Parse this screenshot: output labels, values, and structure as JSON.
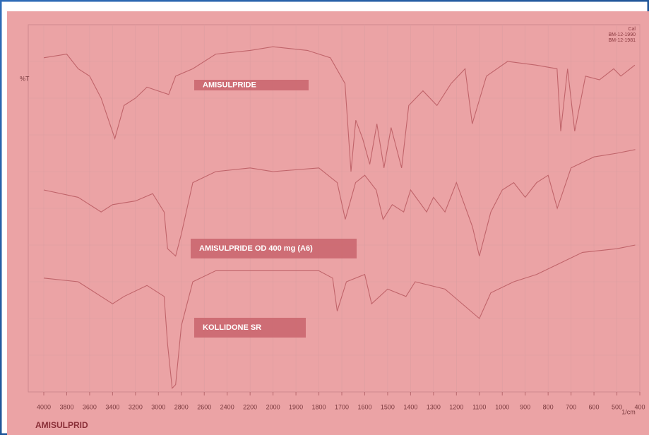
{
  "chart_data": {
    "type": "line",
    "y_label": "%T",
    "x_label": "1/cm",
    "caption": "AMISULPRID",
    "annotations": [
      "Cal",
      "BM-12-1990",
      "BM-12-1981"
    ],
    "xlim": [
      4000,
      400
    ],
    "xticks": [
      4000,
      3800,
      3600,
      3400,
      3200,
      3000,
      2800,
      2600,
      2400,
      2200,
      2000,
      1900,
      1800,
      1700,
      1600,
      1500,
      1400,
      1300,
      1200,
      1100,
      1000,
      900,
      800,
      700,
      600,
      500,
      400
    ],
    "ylim": [
      0,
      100
    ],
    "grid": true,
    "series": [
      {
        "name": "AMISULPRIDE",
        "color": "#c0646a",
        "x": [
          4000,
          3800,
          3700,
          3600,
          3500,
          3380,
          3300,
          3200,
          3100,
          2910,
          2850,
          2700,
          2500,
          2200,
          2000,
          1850,
          1750,
          1686,
          1660,
          1639,
          1609,
          1578,
          1547,
          1516,
          1485,
          1439,
          1408,
          1346,
          1285,
          1223,
          1162,
          1131,
          1069,
          977,
          853,
          761,
          745,
          715,
          684,
          637,
          576,
          514,
          483,
          422
        ],
        "values": [
          91,
          92,
          88,
          86,
          80,
          69,
          78,
          80,
          83,
          81,
          86,
          88,
          92,
          93,
          94,
          93,
          91,
          84,
          60,
          74,
          69,
          62,
          73,
          61,
          72,
          61,
          78,
          82,
          78,
          84,
          88,
          73,
          86,
          90,
          89,
          88,
          71,
          88,
          71,
          86,
          85,
          88,
          86,
          89
        ]
      },
      {
        "name": "AMISULPRIDE OD 400 mg (A6)",
        "color": "#c0646a",
        "x": [
          4000,
          3700,
          3500,
          3400,
          3200,
          3050,
          2950,
          2920,
          2850,
          2800,
          2700,
          2500,
          2200,
          2000,
          1800,
          1720,
          1685,
          1640,
          1600,
          1550,
          1520,
          1480,
          1430,
          1400,
          1330,
          1300,
          1250,
          1200,
          1130,
          1100,
          1050,
          1000,
          950,
          900,
          850,
          800,
          760,
          700,
          600,
          500,
          420
        ],
        "values": [
          55,
          53,
          49,
          51,
          52,
          54,
          49,
          39,
          37,
          43,
          57,
          60,
          61,
          60,
          61,
          57,
          47,
          57,
          59,
          55,
          47,
          51,
          49,
          55,
          49,
          53,
          49,
          57,
          45,
          37,
          49,
          55,
          57,
          53,
          57,
          59,
          50,
          61,
          64,
          65,
          66
        ]
      },
      {
        "name": "KOLLIDONE SR",
        "color": "#c0646a",
        "x": [
          4000,
          3700,
          3500,
          3400,
          3300,
          3100,
          2950,
          2920,
          2880,
          2850,
          2800,
          2700,
          2500,
          2200,
          2000,
          1800,
          1740,
          1720,
          1680,
          1600,
          1570,
          1500,
          1420,
          1380,
          1250,
          1100,
          1050,
          950,
          850,
          750,
          650,
          500,
          420
        ],
        "values": [
          31,
          30,
          26,
          24,
          26,
          29,
          26,
          13,
          1,
          2,
          18,
          30,
          33,
          33,
          33,
          33,
          31,
          22,
          30,
          32,
          24,
          28,
          26,
          30,
          28,
          20,
          27,
          30,
          32,
          35,
          38,
          39,
          40
        ]
      }
    ]
  }
}
